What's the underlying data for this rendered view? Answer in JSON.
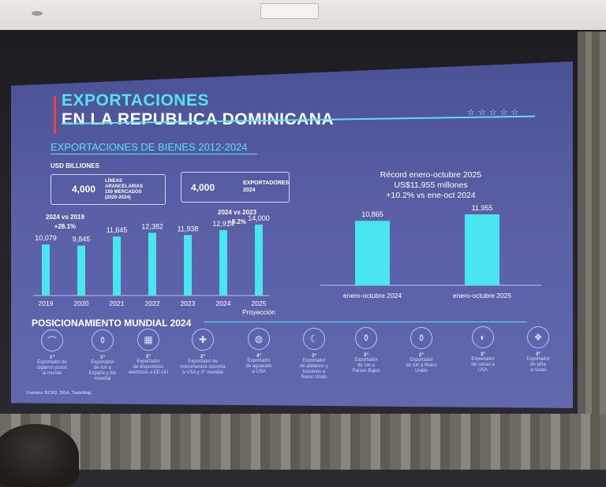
{
  "slide": {
    "title_line1": "EXPORTACIONES",
    "title_line2": "EN LA REPUBLICA DOMINICANA",
    "stars": "☆☆☆☆☆",
    "subtitle": "EXPORTACIONES DE BIENES 2012-2024",
    "unit": "USD BILLIONES",
    "box1": {
      "number": "4,000",
      "label_line1": "LÍNEAS",
      "label_line2": "ARANCELARIAS",
      "label_line3": "150 MERCADOS",
      "label_line4": "(2020-2024)"
    },
    "box2": {
      "number": "4,000",
      "label_line1": "EXPORTADORES",
      "label_line2": "2024"
    },
    "cmp1": {
      "line1": "2024 vs 2019",
      "line2": "+28.1%"
    },
    "cmp2": {
      "line1": "2024 vs 2023",
      "line2": "+8.2%"
    },
    "record": {
      "line1": "Récord enero-octubre 2025",
      "line2": "US$11,955 millones",
      "line3": "+10.2% vs ene-oct 2024"
    },
    "pos_title": "POSICIONAMIENTO MUNDIAL 2024",
    "source": "Fuentes: BCRD, DGA, TradeMap."
  },
  "chart_data": [
    {
      "type": "bar",
      "categories": [
        "2019",
        "2020",
        "2021",
        "2022",
        "2023",
        "2024",
        "2025"
      ],
      "category_sublabels": [
        "",
        "",
        "",
        "",
        "",
        "",
        "Proyección"
      ],
      "values": [
        10079,
        9845,
        11645,
        12382,
        11938,
        12914,
        14000
      ],
      "value_labels": [
        "10,079",
        "9,845",
        "11,645",
        "12,382",
        "11,938",
        "12,914",
        "14,000"
      ],
      "title": "",
      "xlabel": "",
      "ylabel": "USD BILLIONES",
      "color": "#49e6f2"
    },
    {
      "type": "bar",
      "categories": [
        "enero-octubre 2024",
        "enero-octubre 2025"
      ],
      "values": [
        10865,
        11955
      ],
      "value_labels": [
        "10,865",
        "11,955"
      ],
      "title": "",
      "xlabel": "",
      "ylabel": "",
      "color": "#49e6f2"
    }
  ],
  "positions": [
    {
      "icon": "cigar-icon",
      "glyph": "⌒",
      "rank": "1°",
      "desc": [
        "Exportador de",
        "cigarros puros",
        "al mundo"
      ]
    },
    {
      "icon": "rum-bottle-icon",
      "glyph": "⚱",
      "rank": "1°",
      "desc": [
        "Exportador",
        "de ron a",
        "España y 5to",
        "mundial"
      ]
    },
    {
      "icon": "breaker-icon",
      "glyph": "▦",
      "rank": "2°",
      "desc": [
        "Exportador",
        "de disyuntores",
        "eléctricos a EE.UU"
      ]
    },
    {
      "icon": "medical-cross-icon",
      "glyph": "✚",
      "rank": "2°",
      "desc": [
        "Exportador de",
        "instrumentos ostomía",
        "a USA y 3° mundial"
      ]
    },
    {
      "icon": "avocado-icon",
      "glyph": "◍",
      "rank": "4°",
      "desc": [
        "Exportador",
        "de aguacate",
        "a USA"
      ]
    },
    {
      "icon": "banana-icon",
      "glyph": "☾",
      "rank": "3°",
      "desc": [
        "Exportador",
        "de plátanos y",
        "bananos a",
        "Reino Unido"
      ]
    },
    {
      "icon": "rum-bottle-icon",
      "glyph": "⚱",
      "rank": "3°",
      "desc": [
        "Exportador",
        "de ron a",
        "Países Bajos"
      ]
    },
    {
      "icon": "rum-bottle-icon",
      "glyph": "⚱",
      "rank": "2°",
      "desc": [
        "Exportador",
        "de ron a Reino",
        "Unido"
      ]
    },
    {
      "icon": "cacao-icon",
      "glyph": "◐",
      "rank": "3°",
      "desc": [
        "Exportador",
        "de cacao a",
        "USA"
      ]
    },
    {
      "icon": "pineapple-icon",
      "glyph": "❖",
      "rank": "3°",
      "desc": [
        "Exportador",
        "de piña",
        "a Israel"
      ]
    }
  ]
}
